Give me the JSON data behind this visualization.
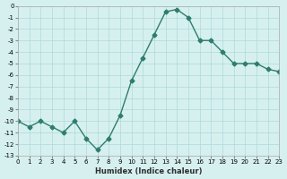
{
  "x": [
    0,
    1,
    2,
    3,
    4,
    5,
    6,
    7,
    8,
    9,
    10,
    11,
    12,
    13,
    14,
    15,
    16,
    17,
    18,
    19,
    20,
    21,
    22,
    23
  ],
  "y": [
    -10,
    -10.5,
    -10,
    -10.5,
    -11,
    -10,
    -11.5,
    -12.5,
    -11.5,
    -9.5,
    -6.5,
    -4.5,
    -2.5,
    -0.5,
    -0.3,
    -1.0,
    -3.0,
    -3.0,
    -4.0,
    -5.0,
    -5.0,
    -5.0,
    -5.5,
    -5.7
  ],
  "line_color": "#2e7d6e",
  "marker": "D",
  "marker_size": 2.5,
  "bg_color": "#d6f0f0",
  "grid_color": "#b0d8d8",
  "xlabel": "Humidex (Indice chaleur)",
  "ylim": [
    -13,
    0
  ],
  "xlim": [
    0,
    23
  ],
  "yticks": [
    0,
    -1,
    -2,
    -3,
    -4,
    -5,
    -6,
    -7,
    -8,
    -9,
    -10,
    -11,
    -12,
    -13
  ],
  "xticks": [
    0,
    1,
    2,
    3,
    4,
    5,
    6,
    7,
    8,
    9,
    10,
    11,
    12,
    13,
    14,
    15,
    16,
    17,
    18,
    19,
    20,
    21,
    22,
    23
  ]
}
